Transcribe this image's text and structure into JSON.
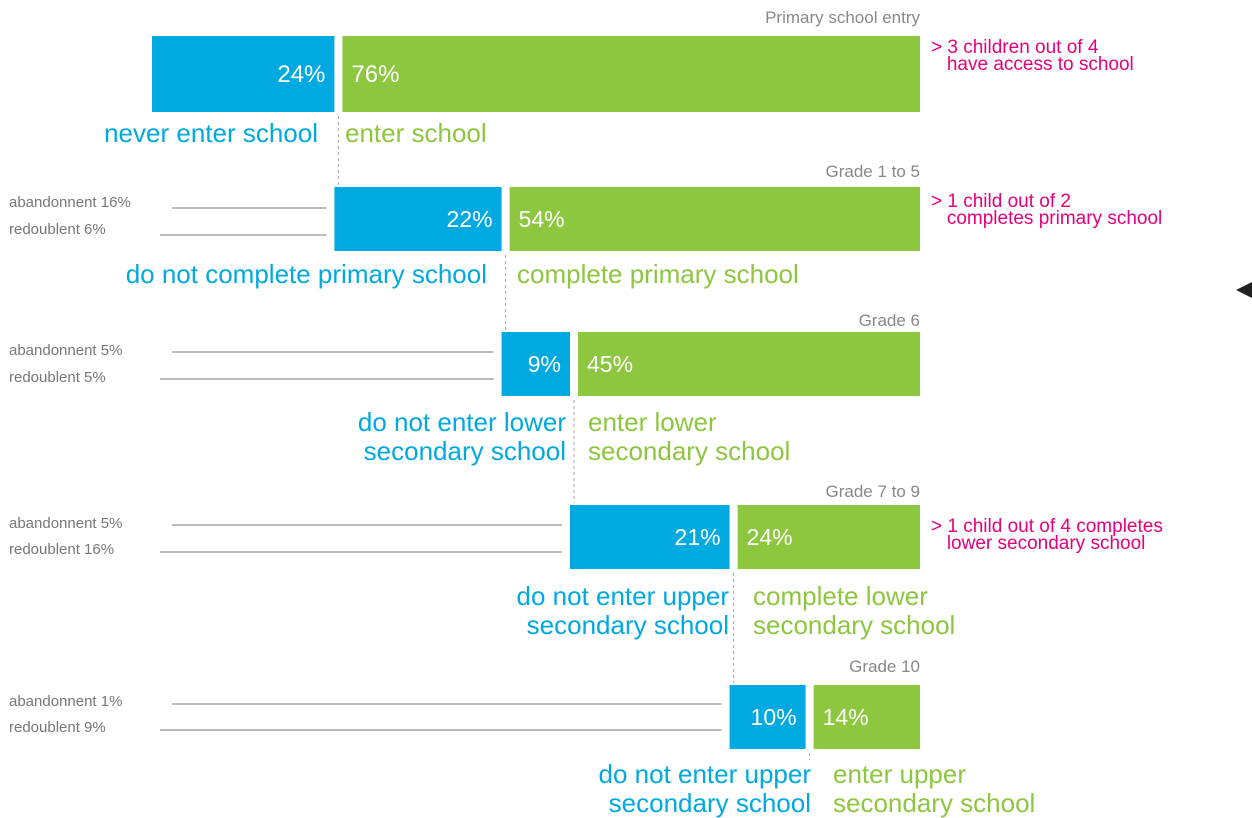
{
  "colors": {
    "negative": "#00a9e0",
    "positive": "#8dc63f",
    "callout": "#e6007e",
    "stage": "#888888",
    "leak": "#777777"
  },
  "chart_data": {
    "type": "bar",
    "categories": [
      "Primary school entry",
      "Grade 1 to 5",
      "Grade 6",
      "Grade 7 to 9",
      "Grade 10"
    ],
    "series": [
      {
        "values": [
          24,
          22,
          9,
          21,
          10
        ]
      },
      {
        "values": [
          76,
          54,
          45,
          24,
          14
        ]
      }
    ],
    "value_labels": {
      "negative": [
        "24%",
        "22%",
        "9%",
        "21%",
        "10%"
      ],
      "positive": [
        "76%",
        "54%",
        "45%",
        "24%",
        "14%"
      ]
    },
    "stages": [
      {
        "title": "Primary school entry",
        "neg_label": "never enter school",
        "pos_label": "enter school",
        "callout": "> 3 children out of 4\n   have access to school",
        "leaks": []
      },
      {
        "title": "Grade 1 to 5",
        "neg_label": "do not complete primary school",
        "pos_label": "complete primary school",
        "callout": "> 1 child out of 2\n   completes primary school",
        "leaks": [
          "abandonnent 16%",
          "redoublent 6%"
        ]
      },
      {
        "title": "Grade 6",
        "neg_label": "do not enter lower\nsecondary school",
        "pos_label": "enter lower\nsecondary school",
        "callout": "",
        "leaks": [
          "abandonnent 5%",
          "redoublent 5%"
        ]
      },
      {
        "title": "Grade 7 to 9",
        "neg_label": "do not enter upper\nsecondary school",
        "pos_label": "complete lower\nsecondary school",
        "callout": "> 1 child out of 4 completes\n   lower secondary school",
        "leaks": [
          "abandonnent 5%",
          "redoublent 16%"
        ]
      },
      {
        "title": "Grade 10",
        "neg_label": "do not enter upper\nsecondary school",
        "pos_label": "enter upper\nsecondary school",
        "callout": "",
        "leaks": [
          "abandonnent 1%",
          "redoublent 9%"
        ]
      }
    ]
  }
}
